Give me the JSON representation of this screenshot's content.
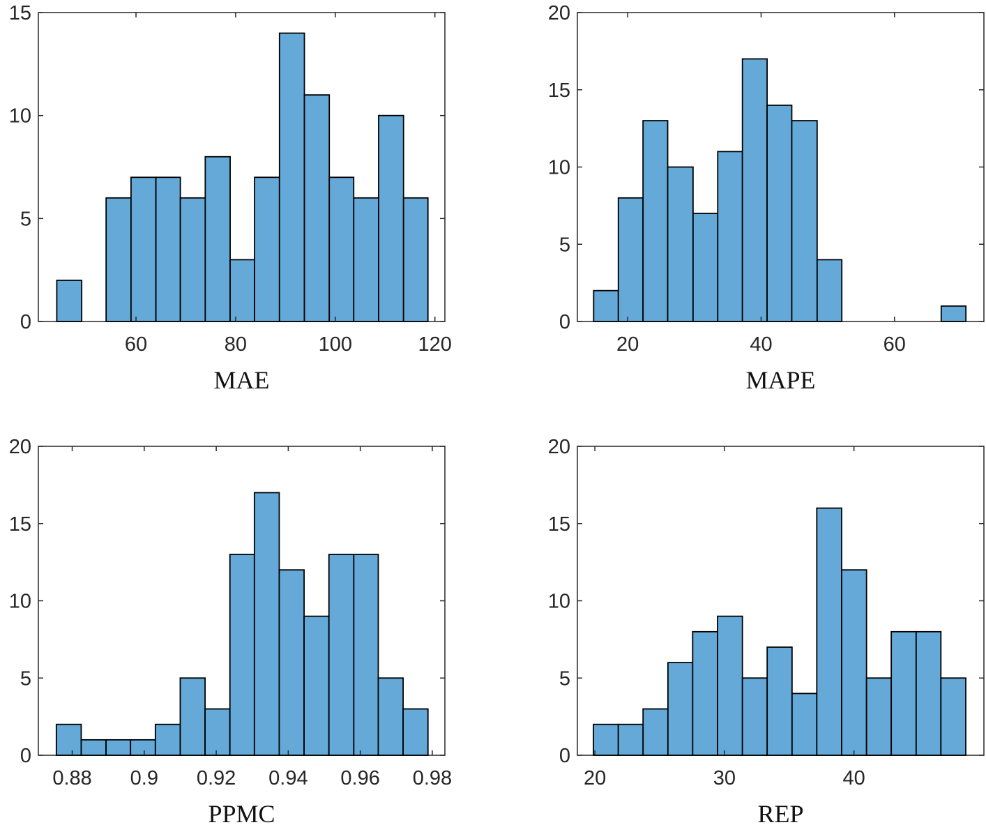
{
  "chart_data": [
    {
      "type": "histogram",
      "xlabel": "MAE",
      "color": "#64a9d7",
      "bins": [
        44.1,
        49.1,
        54.0,
        59.0,
        64.0,
        68.9,
        73.9,
        78.9,
        83.8,
        88.8,
        93.8,
        98.8,
        103.7,
        108.7,
        113.7,
        118.6
      ],
      "values": [
        2,
        0,
        6,
        7,
        7,
        6,
        8,
        3,
        7,
        14,
        11,
        7,
        6,
        10,
        6
      ],
      "xlim": [
        40.4,
        122
      ],
      "xticks": [
        60,
        80,
        100,
        120
      ],
      "ylim": [
        0,
        15
      ],
      "yticks": [
        0,
        5,
        10,
        15
      ]
    },
    {
      "type": "histogram",
      "xlabel": "MAPE",
      "color": "#64a9d7",
      "bins": [
        14.9,
        18.6,
        22.3,
        26.0,
        29.8,
        33.5,
        37.2,
        40.9,
        44.6,
        48.4,
        52.1,
        55.8,
        59.5,
        63.2,
        67.0,
        70.7
      ],
      "values": [
        2,
        8,
        13,
        10,
        7,
        11,
        17,
        14,
        13,
        4,
        0,
        0,
        0,
        0,
        1
      ],
      "xlim": [
        12.46,
        73.4
      ],
      "xticks": [
        20,
        40,
        60
      ],
      "ylim": [
        0,
        20
      ],
      "yticks": [
        0,
        5,
        10,
        15,
        20
      ]
    },
    {
      "type": "histogram",
      "xlabel": "PPMC",
      "color": "#64a9d7",
      "bins": [
        0.8756,
        0.8825,
        0.8894,
        0.8962,
        0.9031,
        0.91,
        0.9169,
        0.9238,
        0.9306,
        0.9375,
        0.9444,
        0.9513,
        0.9582,
        0.965,
        0.9719,
        0.9788
      ],
      "values": [
        2,
        1,
        1,
        1,
        2,
        5,
        3,
        13,
        17,
        12,
        9,
        13,
        13,
        5,
        3
      ],
      "xlim": [
        0.8706,
        0.9835
      ],
      "xticks": [
        0.88,
        0.9,
        0.92,
        0.94,
        0.96,
        0.98
      ],
      "ylim": [
        0,
        20
      ],
      "yticks": [
        0,
        5,
        10,
        15,
        20
      ]
    },
    {
      "type": "histogram",
      "xlabel": "REP",
      "color": "#64a9d7",
      "bins": [
        19.89,
        21.81,
        23.72,
        25.64,
        27.55,
        29.47,
        31.39,
        33.3,
        35.22,
        37.13,
        39.05,
        40.97,
        42.88,
        44.8,
        46.71,
        48.63
      ],
      "values": [
        2,
        2,
        3,
        6,
        8,
        9,
        5,
        7,
        4,
        16,
        12,
        5,
        8,
        8,
        5
      ],
      "xlim": [
        18.65,
        50.03
      ],
      "xticks": [
        20,
        30,
        40
      ],
      "ylim": [
        0,
        20
      ],
      "yticks": [
        0,
        5,
        10,
        15,
        20
      ]
    }
  ]
}
